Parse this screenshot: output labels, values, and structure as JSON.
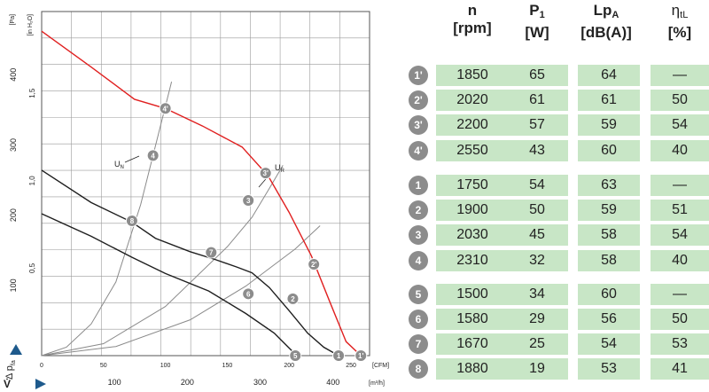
{
  "colors": {
    "grid": "#9a9a9a",
    "curve_black": "#1e1e1e",
    "curve_red": "#e02020",
    "line_gray": "#8a8a8a",
    "badge": "#8c8c8c",
    "cell": "#c8e6c6"
  },
  "chart_data": {
    "type": "line",
    "y_unit_pa": "[Pa]",
    "y_unit_inh2o": "[in H₂O]",
    "x_unit_cfm": "[CFM]",
    "x_unit_m3h": "[m³/h]",
    "y_pa_ticks": [
      "100",
      "200",
      "300",
      "400"
    ],
    "y_inh2o_ticks": [
      "0,5",
      "1,0",
      "1,5"
    ],
    "x_cfm_ticks": [
      "0",
      "50",
      "100",
      "150",
      "200",
      "250"
    ],
    "x_m3h_ticks": [
      "100",
      "200",
      "300",
      "400"
    ],
    "y_axis_symbol": "Δ p",
    "y_axis_sub": "fa",
    "x_axis_symbol": "V̇",
    "xlim_cfm": [
      0,
      265
    ],
    "ylim_pa": [
      0,
      490
    ],
    "series": [
      {
        "name": "Uₙ",
        "label_sub": "N",
        "color": "black",
        "points": [
          [
            0,
            264
          ],
          [
            40,
            218
          ],
          [
            73,
            190
          ],
          [
            92,
            167
          ],
          [
            120,
            148
          ],
          [
            140,
            137
          ],
          [
            158,
            126
          ],
          [
            170,
            118
          ],
          [
            184,
            97
          ],
          [
            200,
            64
          ],
          [
            215,
            32
          ],
          [
            228,
            12
          ],
          [
            240,
            0
          ]
        ]
      },
      {
        "name": "Uᴿ",
        "label_sub": "R",
        "color": "red",
        "points": [
          [
            0,
            462
          ],
          [
            40,
            411
          ],
          [
            75,
            365
          ],
          [
            100,
            352
          ],
          [
            130,
            327
          ],
          [
            162,
            297
          ],
          [
            183,
            256
          ],
          [
            200,
            204
          ],
          [
            218,
            142
          ],
          [
            233,
            76
          ],
          [
            246,
            20
          ],
          [
            258,
            0
          ]
        ]
      },
      {
        "color": "black",
        "points": [
          [
            0,
            202
          ],
          [
            40,
            170
          ],
          [
            73,
            140
          ],
          [
            100,
            117
          ],
          [
            135,
            92
          ],
          [
            165,
            60
          ],
          [
            188,
            32
          ],
          [
            205,
            2
          ]
        ]
      }
    ],
    "system_lines": [
      {
        "points": [
          [
            0,
            0
          ],
          [
            20,
            12
          ],
          [
            40,
            45
          ],
          [
            60,
            105
          ],
          [
            80,
            215
          ],
          [
            95,
            320
          ],
          [
            105,
            390
          ]
        ]
      },
      {
        "points": [
          [
            0,
            0
          ],
          [
            50,
            17
          ],
          [
            100,
            70
          ],
          [
            150,
            155
          ],
          [
            170,
            197
          ],
          [
            185,
            241
          ],
          [
            195,
            271
          ]
        ]
      },
      {
        "points": [
          [
            0,
            0
          ],
          [
            60,
            13
          ],
          [
            120,
            51
          ],
          [
            165,
            99
          ],
          [
            205,
            152
          ],
          [
            225,
            185
          ]
        ]
      }
    ],
    "operating_points": [
      {
        "id": "1'",
        "x": 258,
        "y": 0
      },
      {
        "id": "2'",
        "x": 220,
        "y": 130
      },
      {
        "id": "3'",
        "x": 181,
        "y": 260
      },
      {
        "id": "4'",
        "x": 100,
        "y": 352
      },
      {
        "id": "1",
        "x": 240,
        "y": 0
      },
      {
        "id": "2",
        "x": 203,
        "y": 81
      },
      {
        "id": "3",
        "x": 167,
        "y": 221
      },
      {
        "id": "4",
        "x": 90,
        "y": 285
      },
      {
        "id": "5",
        "x": 205,
        "y": 0
      },
      {
        "id": "6",
        "x": 167,
        "y": 88
      },
      {
        "id": "7",
        "x": 137,
        "y": 147
      },
      {
        "id": "8",
        "x": 73,
        "y": 192
      }
    ]
  },
  "table": {
    "headers": [
      {
        "l1": "n",
        "l2": "[rpm]"
      },
      {
        "l1": "P",
        "sub": "1",
        "l2": "[W]"
      },
      {
        "l1": "Lp",
        "sub": "A",
        "l2": "[dB(A)]"
      },
      {
        "l1": "η",
        "sub": "tL",
        "l2": "[%]"
      }
    ],
    "rows": [
      {
        "id": "1'",
        "n": "1850",
        "p1": "65",
        "lpa": "64",
        "eta": "—"
      },
      {
        "id": "2'",
        "n": "2020",
        "p1": "61",
        "lpa": "61",
        "eta": "50"
      },
      {
        "id": "3'",
        "n": "2200",
        "p1": "57",
        "lpa": "59",
        "eta": "54"
      },
      {
        "id": "4'",
        "n": "2550",
        "p1": "43",
        "lpa": "60",
        "eta": "40"
      },
      {
        "id": "1",
        "n": "1750",
        "p1": "54",
        "lpa": "63",
        "eta": "—"
      },
      {
        "id": "2",
        "n": "1900",
        "p1": "50",
        "lpa": "59",
        "eta": "51"
      },
      {
        "id": "3",
        "n": "2030",
        "p1": "45",
        "lpa": "58",
        "eta": "54"
      },
      {
        "id": "4",
        "n": "2310",
        "p1": "32",
        "lpa": "58",
        "eta": "40"
      },
      {
        "id": "5",
        "n": "1500",
        "p1": "34",
        "lpa": "60",
        "eta": "—"
      },
      {
        "id": "6",
        "n": "1580",
        "p1": "29",
        "lpa": "56",
        "eta": "50"
      },
      {
        "id": "7",
        "n": "1670",
        "p1": "25",
        "lpa": "54",
        "eta": "53"
      },
      {
        "id": "8",
        "n": "1880",
        "p1": "19",
        "lpa": "53",
        "eta": "41"
      }
    ]
  }
}
